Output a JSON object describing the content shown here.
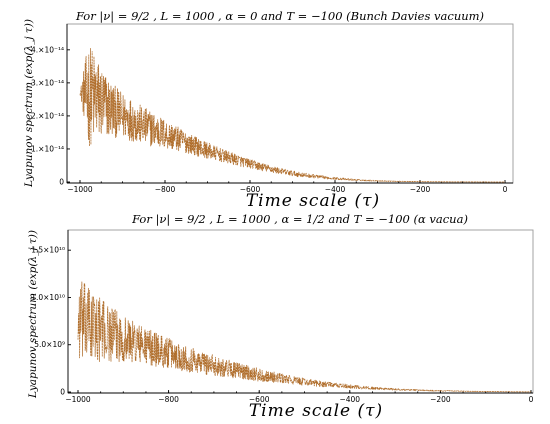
{
  "chart_data": [
    {
      "type": "line",
      "title": "For |ν| = 9/2 , L = 1000 , α = 0 and T = −100 (Bunch Davies vacuum)",
      "xlabel": "Time scale (τ)",
      "ylabel": "Lyapunov spectrum (exp(λ_j τ))",
      "xlim": [
        -1000,
        0
      ],
      "ylim": [
        0,
        4.6e-14
      ],
      "xticks": [
        -1000,
        -800,
        -600,
        -400,
        -200,
        0
      ],
      "xtick_labels": [
        "−1000",
        "−800",
        "−600",
        "−400",
        "−200",
        "0"
      ],
      "yticks": [
        0,
        1e-14,
        2e-14,
        3e-14,
        4e-14
      ],
      "ytick_labels": [
        "0",
        "1.×10⁻¹⁴",
        "2.×10⁻¹⁴",
        "3.×10⁻¹⁴",
        "4.×10⁻¹⁴"
      ],
      "color": "#b06e2c",
      "series": [
        {
          "x": [
            -1000,
            -980,
            -960,
            -940,
            -920,
            -900,
            -880,
            -860,
            -840,
            -820,
            -800,
            -780,
            -760,
            -740,
            -720,
            -700,
            -680,
            -660,
            -640,
            -620,
            -600,
            -580,
            -560,
            -540,
            -520,
            -500,
            -480,
            -460,
            -440,
            -420,
            -400,
            -380,
            -360,
            -340,
            -320,
            -300,
            -280,
            -260,
            -240,
            -220,
            -200,
            -180,
            -160,
            -140,
            -120,
            -100,
            -80,
            -60,
            -40,
            -20,
            0
          ],
          "y_mean": [
            2.7e-14,
            2.65e-14,
            2.5e-14,
            2.3e-14,
            2.15e-14,
            2e-14,
            1.9e-14,
            1.75e-14,
            1.65e-14,
            1.55e-14,
            1.45e-14,
            1.35e-14,
            1.25e-14,
            1.15e-14,
            1.05e-14,
            9.5e-15,
            8.6e-15,
            7.8e-15,
            7e-15,
            6.2e-15,
            5.5e-15,
            4.8e-15,
            4.2e-15,
            3.6e-15,
            3.1e-15,
            2.6e-15,
            2.2e-15,
            1.9e-15,
            1.6e-15,
            1.3e-15,
            1.1e-15,
            9e-16,
            7e-16,
            5.5e-16,
            4.5e-16,
            3.5e-16,
            2.8e-16,
            2.2e-16,
            1.8e-16,
            1.4e-16,
            1.1e-16,
            9e-17,
            7e-17,
            5.5e-17,
            4.5e-17,
            3.5e-17,
            2.8e-17,
            2.2e-17,
            1.8e-17,
            1.5e-17,
            1.2e-17
          ],
          "y_spread": [
            3e-16,
            1.6e-14,
            1.3e-14,
            1e-14,
            8e-15,
            7e-15,
            6.5e-15,
            6e-15,
            5.5e-15,
            5e-15,
            4.5e-15,
            4e-15,
            3.5e-15,
            3e-15,
            2.8e-15,
            2.5e-15,
            2.2e-15,
            2e-15,
            1.8e-15,
            1.6e-15,
            1.4e-15,
            1.3e-15,
            1.1e-15,
            1e-15,
            9e-16,
            8e-16,
            7e-16,
            6e-16,
            5e-16,
            4e-16,
            3.5e-16,
            3e-16,
            2.5e-16,
            2e-16,
            1.6e-16,
            1.2e-16,
            1e-16,
            8e-17,
            6e-17,
            5e-17,
            4e-17,
            3e-17,
            2.5e-17,
            2e-17,
            1.5e-17,
            1.2e-17,
            1e-17,
            8e-18,
            6e-18,
            5e-18,
            4e-18
          ]
        }
      ]
    },
    {
      "type": "line",
      "title": "For |ν| = 9/2 , L = 1000 , α = 1/2 and T = −100 (α vacua)",
      "xlabel": "Time scale (τ)",
      "ylabel": "Lyapunov spectrum (exp(λ_j τ))",
      "xlim": [
        -1000,
        0
      ],
      "ylim": [
        0,
        16500000000.0
      ],
      "xticks": [
        -1000,
        -800,
        -600,
        -400,
        -200,
        0
      ],
      "xtick_labels": [
        "−1000",
        "−800",
        "−600",
        "−400",
        "−200",
        "0"
      ],
      "yticks": [
        0,
        5000000000.0,
        10000000000.0,
        15000000000.0
      ],
      "ytick_labels": [
        "0",
        "5.0×10⁹",
        "1.0×10¹⁰",
        "1.5×10¹⁰"
      ],
      "color": "#b06e2c",
      "series": [
        {
          "x": [
            -1000,
            -980,
            -960,
            -940,
            -920,
            -900,
            -880,
            -860,
            -840,
            -820,
            -800,
            -780,
            -760,
            -740,
            -720,
            -700,
            -680,
            -660,
            -640,
            -620,
            -600,
            -580,
            -560,
            -540,
            -520,
            -500,
            -480,
            -460,
            -440,
            -420,
            -400,
            -380,
            -360,
            -340,
            -320,
            -300,
            -280,
            -260,
            -240,
            -220,
            -200,
            -180,
            -160,
            -140,
            -120,
            -100,
            -80,
            -60,
            -40,
            -20,
            0
          ],
          "y_mean": [
            7500000000.0,
            7200000000.0,
            6800000000.0,
            6400000000.0,
            6000000000.0,
            5700000000.0,
            5300000000.0,
            5000000000.0,
            4700000000.0,
            4400000000.0,
            4100000000.0,
            3800000000.0,
            3550000000.0,
            3300000000.0,
            3050000000.0,
            2800000000.0,
            2600000000.0,
            2400000000.0,
            2200000000.0,
            2000000000.0,
            1800000000.0,
            1650000000.0,
            1500000000.0,
            1350000000.0,
            1200000000.0,
            1080000000.0,
            960000000.0,
            850000000.0,
            750000000.0,
            660000000.0,
            580000000.0,
            500000000.0,
            440000000.0,
            380000000.0,
            330000000.0,
            280000000.0,
            240000000.0,
            210000000.0,
            180000000.0,
            150000000.0,
            130000000.0,
            110000000.0,
            90000000.0,
            75000000.0,
            62000000.0,
            50000000.0,
            40000000.0,
            32000000.0,
            25000000.0,
            20000000.0,
            15000000.0
          ],
          "y_spread": [
            4500000000.0,
            4200000000.0,
            3600000000.0,
            3200000000.0,
            2800000000.0,
            2500000000.0,
            2300000000.0,
            2100000000.0,
            1900000000.0,
            1800000000.0,
            1600000000.0,
            1500000000.0,
            1400000000.0,
            1300000000.0,
            1200000000.0,
            1100000000.0,
            1000000000.0,
            900000000.0,
            820000000.0,
            750000000.0,
            680000000.0,
            600000000.0,
            540000000.0,
            480000000.0,
            430000000.0,
            380000000.0,
            340000000.0,
            300000000.0,
            260000000.0,
            230000000.0,
            200000000.0,
            170000000.0,
            150000000.0,
            130000000.0,
            110000000.0,
            95000000.0,
            80000000.0,
            70000000.0,
            60000000.0,
            50000000.0,
            42000000.0,
            35000000.0,
            30000000.0,
            25000000.0,
            20000000.0,
            16000000.0,
            13000000.0,
            10000000.0,
            8000000.0,
            6000000.0,
            5000000.0
          ]
        }
      ]
    }
  ]
}
